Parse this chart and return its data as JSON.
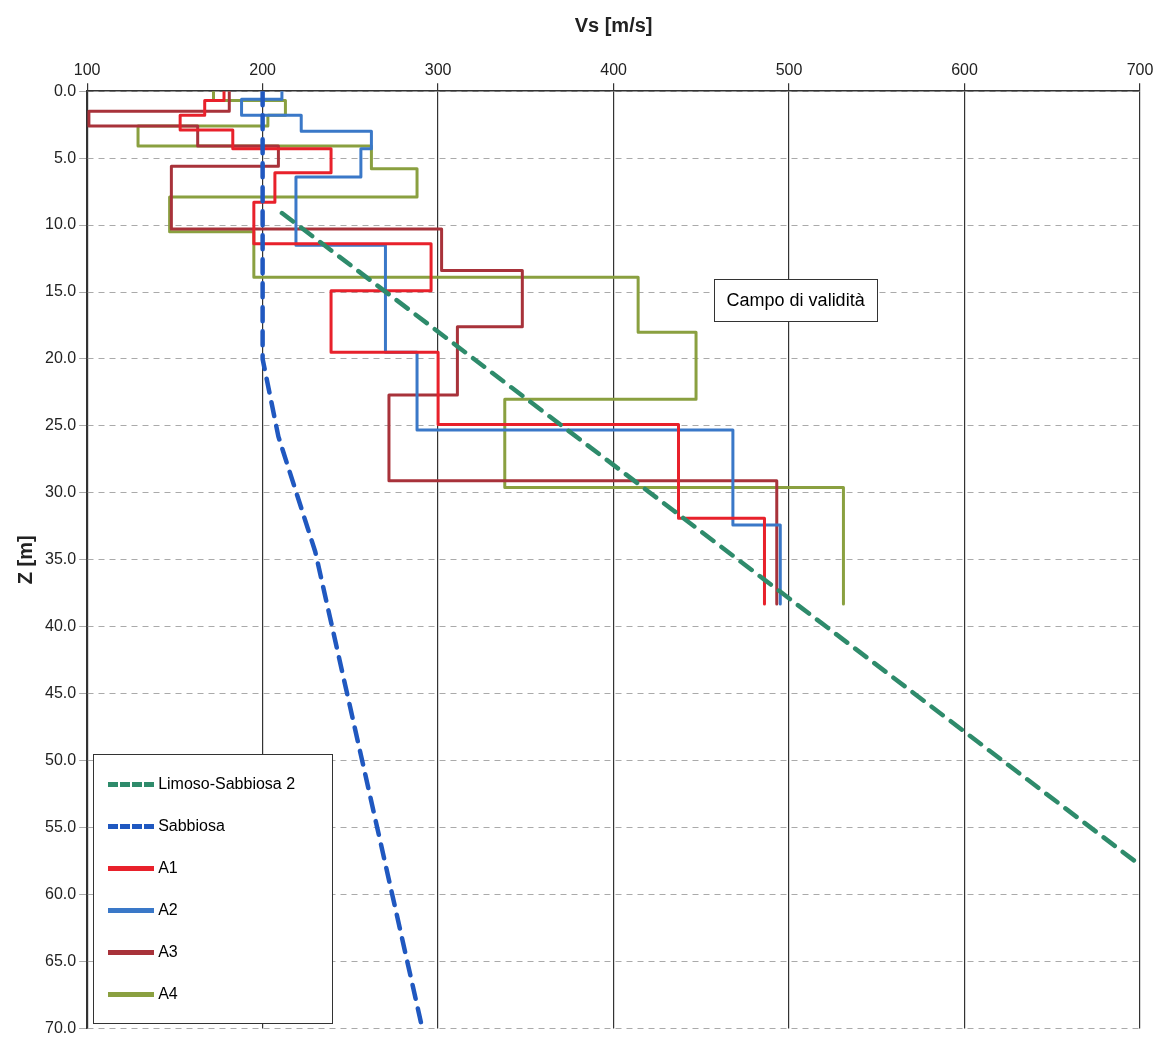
{
  "chart_data": {
    "type": "line",
    "xlabel": "Vs [m/s]",
    "ylabel": "Z [m]",
    "xlim": [
      100,
      700
    ],
    "xticks": [
      100,
      200,
      300,
      400,
      500,
      600,
      700
    ],
    "ylim": [
      70,
      0
    ],
    "yticks": [
      {
        "value": 0,
        "label": "0.0"
      },
      {
        "value": 5,
        "label": "5.0"
      },
      {
        "value": 10,
        "label": "10.0"
      },
      {
        "value": 15,
        "label": "15.0"
      },
      {
        "value": 20,
        "label": "20.0"
      },
      {
        "value": 25,
        "label": "25.0"
      },
      {
        "value": 30,
        "label": "30.0"
      },
      {
        "value": 35,
        "label": "35.0"
      },
      {
        "value": 40,
        "label": "40.0"
      },
      {
        "value": 45,
        "label": "45.0"
      },
      {
        "value": 50,
        "label": "50.0"
      },
      {
        "value": 55,
        "label": "55.0"
      },
      {
        "value": 60,
        "label": "60.0"
      },
      {
        "value": 65,
        "label": "65.0"
      },
      {
        "value": 70,
        "label": "70.0"
      }
    ],
    "grid": true,
    "legend": "bottom left",
    "marker": "none",
    "annotations": [
      "Campo di validità"
    ],
    "series": [
      {
        "name": "Limoso-Sabbiosa 2",
        "color": "#2e8b6b",
        "line_style": "dashed",
        "x": [
          211,
          700
        ],
        "values": [
          9.1,
          57.8
        ]
      },
      {
        "name": "Sabbiosa",
        "color": "#2058c0",
        "line_style": "dashed",
        "x": [
          200,
          200,
          209,
          230,
          291
        ],
        "values": [
          0,
          20,
          25.8,
          34.4,
          70
        ]
      },
      {
        "name": "A1",
        "color": "#e8212b",
        "line_style": "solid",
        "x": [
          178,
          178,
          167,
          167,
          153,
          153,
          183,
          183,
          239,
          239,
          207,
          207,
          195,
          195,
          296,
          296,
          239,
          239,
          300,
          300,
          437,
          437,
          486,
          486
        ],
        "values": [
          0,
          0.7,
          0.7,
          1.8,
          1.8,
          2.9,
          2.9,
          4.3,
          4.3,
          6.1,
          6.1,
          8.3,
          8.3,
          11.4,
          11.4,
          14.9,
          14.9,
          19.5,
          19.5,
          24.9,
          24.9,
          31.9,
          31.9,
          38.3
        ]
      },
      {
        "name": "A2",
        "color": "#3a78c8",
        "line_style": "solid",
        "x": [
          211,
          211,
          188,
          188,
          222,
          222,
          262,
          262,
          256,
          256,
          219,
          219,
          270,
          270,
          288,
          288,
          468,
          468,
          495,
          495
        ],
        "values": [
          0,
          0.6,
          0.6,
          1.8,
          1.8,
          3,
          3,
          4.3,
          4.3,
          6.4,
          6.4,
          11.5,
          11.5,
          19.5,
          19.5,
          25.3,
          25.3,
          32.4,
          32.4,
          38.3
        ]
      },
      {
        "name": "A3",
        "color": "#a8323a",
        "line_style": "solid",
        "x": [
          181,
          181,
          101,
          101,
          163,
          163,
          209,
          209,
          148,
          148,
          302,
          302,
          348,
          348,
          311,
          311,
          272,
          272,
          493,
          493
        ],
        "values": [
          0,
          1.5,
          1.5,
          2.6,
          2.6,
          4.1,
          4.1,
          5.6,
          5.6,
          10.3,
          10.3,
          13.4,
          13.4,
          17.6,
          17.6,
          22.7,
          22.7,
          29.1,
          29.1,
          38.3
        ]
      },
      {
        "name": "A4",
        "color": "#8aa040",
        "line_style": "solid",
        "x": [
          172,
          172,
          213,
          213,
          203,
          203,
          129,
          129,
          262,
          262,
          288,
          288,
          147,
          147,
          195,
          195,
          414,
          414,
          447,
          447,
          338,
          338,
          531,
          531
        ],
        "values": [
          0,
          0.7,
          0.7,
          1.8,
          1.8,
          2.6,
          2.6,
          4.1,
          4.1,
          5.8,
          5.8,
          7.9,
          7.9,
          10.5,
          10.5,
          13.9,
          13.9,
          18,
          18,
          23,
          23,
          29.6,
          29.6,
          38.3
        ]
      }
    ]
  }
}
